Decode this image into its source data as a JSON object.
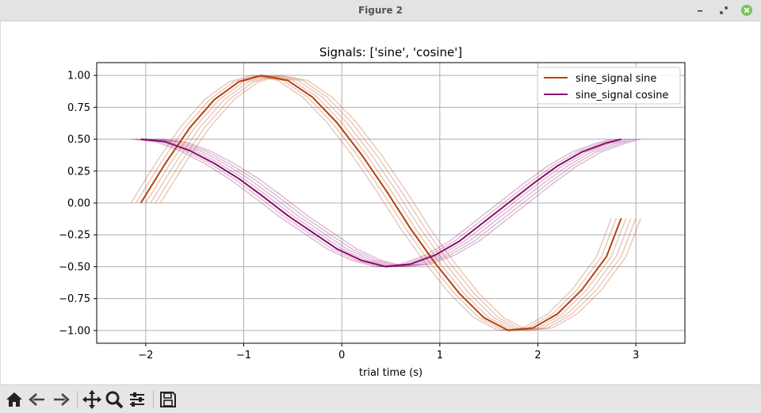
{
  "window": {
    "title": "Figure 2",
    "controls": [
      "minimize-icon",
      "maximize-icon",
      "close-icon"
    ],
    "close_color": "#7cc35c"
  },
  "toolbar": {
    "buttons": [
      {
        "name": "home-button",
        "icon": "home-icon"
      },
      {
        "name": "back-button",
        "icon": "back-arrow-icon"
      },
      {
        "name": "forward-button",
        "icon": "forward-arrow-icon"
      },
      {
        "name": "pan-button",
        "icon": "move-icon"
      },
      {
        "name": "zoom-button",
        "icon": "magnifier-icon"
      },
      {
        "name": "configure-subplots-button",
        "icon": "sliders-icon"
      },
      {
        "name": "save-button",
        "icon": "floppy-disk-icon"
      }
    ]
  },
  "chart_data": {
    "type": "line",
    "title": "Signals: ['sine', 'cosine']",
    "xlabel": "trial time (s)",
    "ylabel": "",
    "xlim": [
      -2.5,
      3.5
    ],
    "ylim": [
      -1.1,
      1.1
    ],
    "xticks": [
      "−2",
      "−1",
      "0",
      "1",
      "2",
      "3"
    ],
    "xtick_values": [
      -2,
      -1,
      0,
      1,
      2,
      3
    ],
    "yticks": [
      "1.00",
      "0.75",
      "0.50",
      "0.25",
      "0.00",
      "−0.25",
      "−0.50",
      "−0.75",
      "−1.00"
    ],
    "ytick_values": [
      1.0,
      0.75,
      0.5,
      0.25,
      0.0,
      -0.25,
      -0.5,
      -0.75,
      -1.0
    ],
    "grid": true,
    "legend_position": "upper right",
    "series": [
      {
        "name": "sine_signal sine",
        "color": "#b5410c",
        "x": [
          -2.05,
          -1.8,
          -1.55,
          -1.3,
          -1.05,
          -0.82,
          -0.55,
          -0.3,
          -0.05,
          0.2,
          0.45,
          0.7,
          0.95,
          1.2,
          1.45,
          1.7,
          1.95,
          2.2,
          2.45,
          2.7,
          2.85
        ],
        "y": [
          0.0,
          0.31,
          0.59,
          0.81,
          0.95,
          1.0,
          0.96,
          0.83,
          0.63,
          0.38,
          0.1,
          -0.2,
          -0.47,
          -0.71,
          -0.9,
          -1.0,
          -0.98,
          -0.87,
          -0.68,
          -0.42,
          -0.12
        ],
        "trial_offsets": [
          -0.1,
          -0.05,
          0.05,
          0.1,
          0.15,
          0.2
        ]
      },
      {
        "name": "sine_signal cosine",
        "color": "#8b0a6a",
        "x": [
          -2.05,
          -1.8,
          -1.55,
          -1.3,
          -1.05,
          -0.82,
          -0.55,
          -0.3,
          -0.05,
          0.2,
          0.45,
          0.7,
          0.95,
          1.2,
          1.45,
          1.7,
          1.95,
          2.2,
          2.45,
          2.7,
          2.85
        ],
        "y": [
          0.5,
          0.48,
          0.41,
          0.31,
          0.19,
          0.06,
          -0.1,
          -0.23,
          -0.36,
          -0.45,
          -0.5,
          -0.48,
          -0.41,
          -0.3,
          -0.15,
          0.0,
          0.15,
          0.29,
          0.4,
          0.47,
          0.5
        ],
        "trial_offsets": [
          -0.1,
          -0.05,
          0.05,
          0.1,
          0.15,
          0.2
        ]
      }
    ]
  }
}
